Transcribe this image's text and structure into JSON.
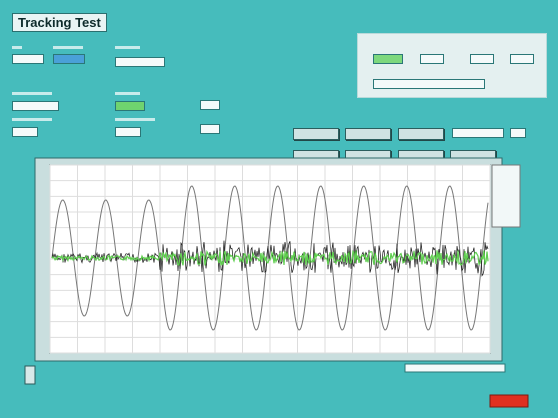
{
  "header": {
    "title": "Tracking Test"
  }
}
